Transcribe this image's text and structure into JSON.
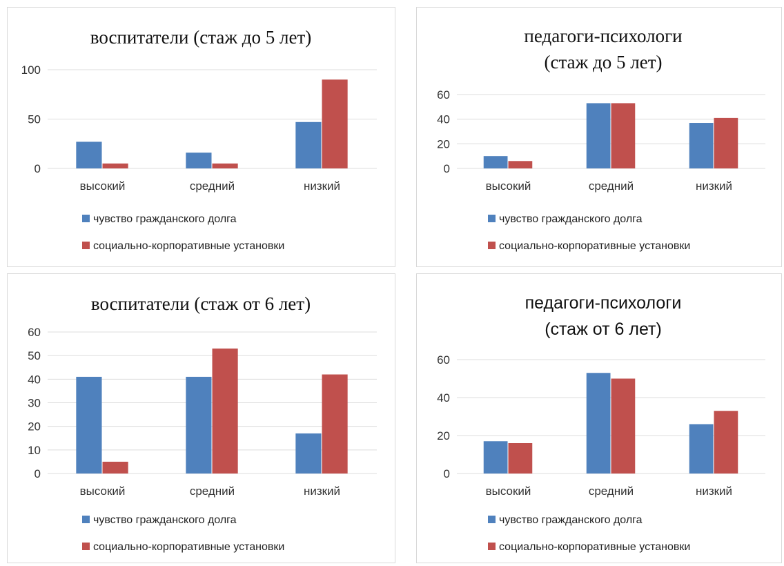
{
  "colors": {
    "series1": "#4f81bd",
    "series2": "#c0504d"
  },
  "chart_data": [
    {
      "type": "bar",
      "title_lines": [
        "воспитатели (стаж до 5 лет)"
      ],
      "categories": [
        "высокий",
        "средний",
        "низкий"
      ],
      "ylim": [
        0,
        100
      ],
      "yticks": [
        "0",
        "50",
        "100"
      ],
      "grid": true,
      "legend_position": "bottom",
      "series": [
        {
          "name": "чувство гражданского долга",
          "values": [
            27,
            16,
            47
          ]
        },
        {
          "name": "социально-корпоративные установки",
          "values": [
            5,
            5,
            90
          ]
        }
      ]
    },
    {
      "type": "bar",
      "title_lines": [
        "педагоги-психологи",
        "(стаж до 5 лет)"
      ],
      "categories": [
        "высокий",
        "средний",
        "низкий"
      ],
      "ylim": [
        0,
        60
      ],
      "yticks": [
        "0",
        "20",
        "40",
        "60"
      ],
      "grid": true,
      "legend_position": "bottom",
      "series": [
        {
          "name": "чувство гражданского долга",
          "values": [
            10,
            53,
            37
          ]
        },
        {
          "name": "социально-корпоративные установки",
          "values": [
            6,
            53,
            41
          ]
        }
      ]
    },
    {
      "type": "bar",
      "title_lines": [
        "воспитатели (стаж от 6 лет)"
      ],
      "categories": [
        "высокий",
        "средний",
        "низкий"
      ],
      "ylim": [
        0,
        60
      ],
      "yticks": [
        "0",
        "10",
        "20",
        "30",
        "40",
        "50",
        "60"
      ],
      "grid": true,
      "legend_position": "bottom",
      "series": [
        {
          "name": "чувство гражданского долга",
          "values": [
            41,
            41,
            17
          ]
        },
        {
          "name": "социально-корпоративные установки",
          "values": [
            5,
            53,
            42
          ]
        }
      ]
    },
    {
      "type": "bar",
      "title_lines": [
        "педагоги-психологи",
        "(стаж от 6 лет)"
      ],
      "categories": [
        "высокий",
        "средний",
        "низкий"
      ],
      "ylim": [
        0,
        60
      ],
      "yticks": [
        "0",
        "20",
        "40",
        "60"
      ],
      "grid": true,
      "legend_position": "bottom",
      "series": [
        {
          "name": "чувство гражданского долга",
          "values": [
            17,
            53,
            26
          ]
        },
        {
          "name": "социально-корпоративные установки",
          "values": [
            16,
            50,
            33
          ]
        }
      ]
    }
  ]
}
